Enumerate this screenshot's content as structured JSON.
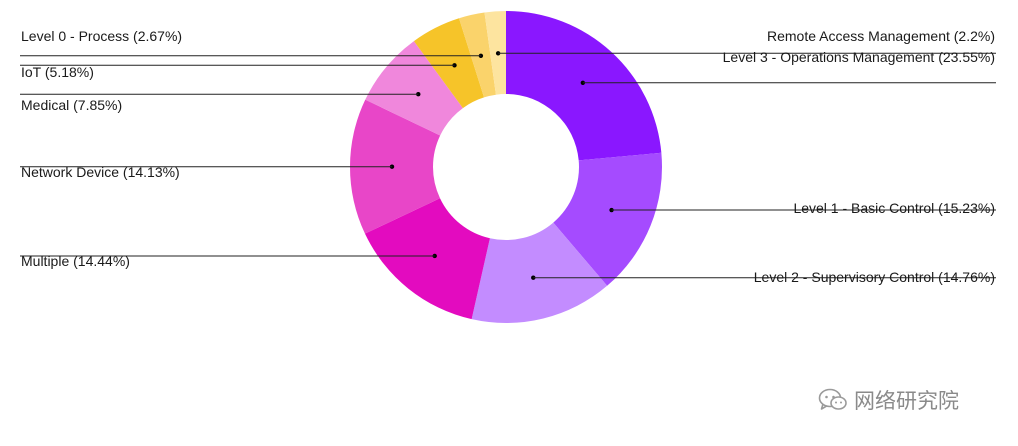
{
  "chart_data": {
    "type": "pie",
    "donut": true,
    "categories": [
      "Level 3 - Operations Management",
      "Level 1 - Basic Control",
      "Level 2 - Supervisory Control",
      "Multiple",
      "Network Device",
      "Medical",
      "IoT",
      "Level 0 - Process",
      "Remote Access Management"
    ],
    "values": [
      23.55,
      15.23,
      14.76,
      14.44,
      14.13,
      7.85,
      5.18,
      2.67,
      2.2
    ],
    "labels": [
      "Level 3 - Operations Management (23.55%)",
      "Level 1 - Basic Control (15.23%)",
      "Level 2 - Supervisory Control (14.76%)",
      "Multiple (14.44%)",
      "Network Device (14.13%)",
      "Medical (7.85%)",
      "IoT (5.18%)",
      "Level 0 - Process (2.67%)",
      "Remote Access Management (2.2%)"
    ],
    "colors": [
      "#8a17ff",
      "#a54bff",
      "#c38cff",
      "#e30bbf",
      "#e846c8",
      "#f087dc",
      "#f6c429",
      "#fad36b",
      "#fde49f"
    ],
    "label_sides": [
      "right",
      "right",
      "right",
      "left",
      "left",
      "left",
      "left",
      "left",
      "right"
    ]
  },
  "watermark": {
    "text": "网络研究院",
    "icon": "wechat-icon"
  }
}
